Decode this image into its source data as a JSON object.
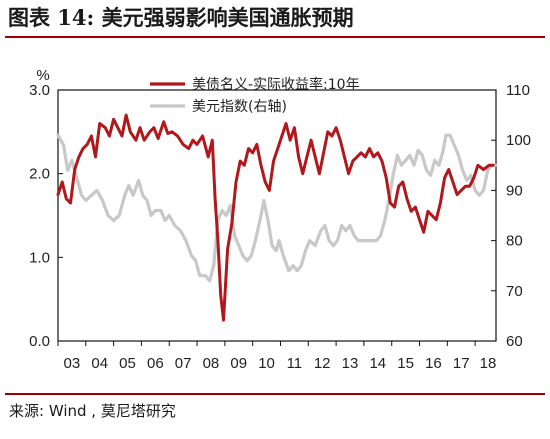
{
  "header": {
    "title": "图表 14:  美元强弱影响美国通胀预期"
  },
  "footer": {
    "source": "来源:  Wind , 莫尼塔研究"
  },
  "colors": {
    "accent": "#9b0000",
    "series_red": "#b0181c",
    "series_gray": "#c8c8c8",
    "axis": "#111111"
  },
  "chart_data": {
    "type": "line",
    "title": "",
    "left_unit": "%",
    "grid": false,
    "legend_position": "top-center",
    "x_tick_labels": [
      "03",
      "04",
      "05",
      "06",
      "07",
      "08",
      "09",
      "10",
      "11",
      "12",
      "13",
      "14",
      "15",
      "16",
      "17",
      "18"
    ],
    "x_range": [
      2003.0,
      2018.75
    ],
    "y_left": {
      "range": [
        0,
        3.0
      ],
      "ticks": [
        "0.0",
        "1.0",
        "2.0",
        "3.0"
      ]
    },
    "y_right": {
      "range": [
        60,
        110
      ],
      "ticks": [
        "60",
        "70",
        "80",
        "90",
        "100",
        "110"
      ]
    },
    "series": [
      {
        "name": "美债名义-实际收益率:10年",
        "axis": "left",
        "color": "#b0181c",
        "points": [
          [
            2003.0,
            1.75
          ],
          [
            2003.15,
            1.9
          ],
          [
            2003.3,
            1.7
          ],
          [
            2003.45,
            1.65
          ],
          [
            2003.6,
            2.05
          ],
          [
            2003.75,
            2.2
          ],
          [
            2003.9,
            2.3
          ],
          [
            2004.05,
            2.35
          ],
          [
            2004.2,
            2.45
          ],
          [
            2004.35,
            2.2
          ],
          [
            2004.5,
            2.6
          ],
          [
            2004.7,
            2.55
          ],
          [
            2004.85,
            2.45
          ],
          [
            2005.0,
            2.65
          ],
          [
            2005.15,
            2.55
          ],
          [
            2005.3,
            2.45
          ],
          [
            2005.45,
            2.7
          ],
          [
            2005.6,
            2.5
          ],
          [
            2005.8,
            2.4
          ],
          [
            2005.95,
            2.55
          ],
          [
            2006.1,
            2.4
          ],
          [
            2006.3,
            2.5
          ],
          [
            2006.45,
            2.55
          ],
          [
            2006.6,
            2.42
          ],
          [
            2006.8,
            2.62
          ],
          [
            2006.95,
            2.48
          ],
          [
            2007.1,
            2.5
          ],
          [
            2007.3,
            2.45
          ],
          [
            2007.5,
            2.35
          ],
          [
            2007.7,
            2.3
          ],
          [
            2007.85,
            2.4
          ],
          [
            2008.0,
            2.35
          ],
          [
            2008.2,
            2.45
          ],
          [
            2008.4,
            2.2
          ],
          [
            2008.55,
            2.4
          ],
          [
            2008.65,
            1.7
          ],
          [
            2008.75,
            1.2
          ],
          [
            2008.85,
            0.55
          ],
          [
            2008.95,
            0.25
          ],
          [
            2009.1,
            1.1
          ],
          [
            2009.25,
            1.4
          ],
          [
            2009.4,
            1.9
          ],
          [
            2009.55,
            2.15
          ],
          [
            2009.7,
            2.1
          ],
          [
            2009.85,
            2.3
          ],
          [
            2010.0,
            2.25
          ],
          [
            2010.15,
            2.35
          ],
          [
            2010.3,
            2.1
          ],
          [
            2010.45,
            1.9
          ],
          [
            2010.6,
            1.8
          ],
          [
            2010.75,
            2.15
          ],
          [
            2010.9,
            2.3
          ],
          [
            2011.05,
            2.45
          ],
          [
            2011.2,
            2.6
          ],
          [
            2011.35,
            2.4
          ],
          [
            2011.5,
            2.55
          ],
          [
            2011.65,
            2.2
          ],
          [
            2011.8,
            2.0
          ],
          [
            2011.95,
            2.2
          ],
          [
            2012.1,
            2.4
          ],
          [
            2012.25,
            2.2
          ],
          [
            2012.4,
            2.0
          ],
          [
            2012.55,
            2.25
          ],
          [
            2012.7,
            2.5
          ],
          [
            2012.85,
            2.45
          ],
          [
            2013.0,
            2.55
          ],
          [
            2013.15,
            2.4
          ],
          [
            2013.3,
            2.2
          ],
          [
            2013.45,
            2.0
          ],
          [
            2013.6,
            2.15
          ],
          [
            2013.75,
            2.2
          ],
          [
            2013.9,
            2.25
          ],
          [
            2014.05,
            2.2
          ],
          [
            2014.2,
            2.3
          ],
          [
            2014.35,
            2.2
          ],
          [
            2014.5,
            2.25
          ],
          [
            2014.65,
            2.15
          ],
          [
            2014.8,
            1.95
          ],
          [
            2014.95,
            1.65
          ],
          [
            2015.1,
            1.6
          ],
          [
            2015.25,
            1.85
          ],
          [
            2015.4,
            1.9
          ],
          [
            2015.55,
            1.7
          ],
          [
            2015.7,
            1.55
          ],
          [
            2015.85,
            1.6
          ],
          [
            2016.0,
            1.45
          ],
          [
            2016.15,
            1.3
          ],
          [
            2016.3,
            1.55
          ],
          [
            2016.45,
            1.5
          ],
          [
            2016.6,
            1.45
          ],
          [
            2016.75,
            1.65
          ],
          [
            2016.9,
            1.95
          ],
          [
            2017.05,
            2.05
          ],
          [
            2017.2,
            1.9
          ],
          [
            2017.35,
            1.75
          ],
          [
            2017.5,
            1.8
          ],
          [
            2017.65,
            1.85
          ],
          [
            2017.8,
            1.85
          ],
          [
            2017.95,
            1.95
          ],
          [
            2018.1,
            2.1
          ],
          [
            2018.3,
            2.05
          ],
          [
            2018.5,
            2.1
          ],
          [
            2018.65,
            2.1
          ]
        ]
      },
      {
        "name": "美元指数(右轴)",
        "axis": "right",
        "color": "#c8c8c8",
        "points": [
          [
            2003.0,
            101
          ],
          [
            2003.2,
            99
          ],
          [
            2003.35,
            94
          ],
          [
            2003.5,
            96
          ],
          [
            2003.7,
            92
          ],
          [
            2003.85,
            89
          ],
          [
            2004.0,
            88
          ],
          [
            2004.2,
            89
          ],
          [
            2004.4,
            90
          ],
          [
            2004.6,
            88
          ],
          [
            2004.8,
            85
          ],
          [
            2005.0,
            84
          ],
          [
            2005.2,
            85
          ],
          [
            2005.4,
            89
          ],
          [
            2005.55,
            91
          ],
          [
            2005.7,
            89
          ],
          [
            2005.9,
            92
          ],
          [
            2006.05,
            89
          ],
          [
            2006.2,
            88
          ],
          [
            2006.35,
            85
          ],
          [
            2006.5,
            86
          ],
          [
            2006.7,
            86
          ],
          [
            2006.85,
            84
          ],
          [
            2007.0,
            85
          ],
          [
            2007.2,
            83
          ],
          [
            2007.4,
            82
          ],
          [
            2007.6,
            80
          ],
          [
            2007.8,
            77
          ],
          [
            2007.95,
            76
          ],
          [
            2008.1,
            73
          ],
          [
            2008.3,
            73
          ],
          [
            2008.45,
            72
          ],
          [
            2008.6,
            75
          ],
          [
            2008.75,
            84
          ],
          [
            2008.9,
            86
          ],
          [
            2009.05,
            85
          ],
          [
            2009.2,
            87
          ],
          [
            2009.35,
            81
          ],
          [
            2009.5,
            79
          ],
          [
            2009.65,
            77
          ],
          [
            2009.8,
            76
          ],
          [
            2009.95,
            77
          ],
          [
            2010.1,
            80
          ],
          [
            2010.3,
            85
          ],
          [
            2010.4,
            88
          ],
          [
            2010.55,
            84
          ],
          [
            2010.7,
            79
          ],
          [
            2010.85,
            78
          ],
          [
            2010.95,
            80
          ],
          [
            2011.1,
            77
          ],
          [
            2011.3,
            74
          ],
          [
            2011.45,
            75
          ],
          [
            2011.6,
            74
          ],
          [
            2011.75,
            75
          ],
          [
            2011.9,
            78
          ],
          [
            2012.05,
            80
          ],
          [
            2012.25,
            79
          ],
          [
            2012.45,
            82
          ],
          [
            2012.6,
            83
          ],
          [
            2012.75,
            80
          ],
          [
            2012.9,
            79
          ],
          [
            2013.05,
            80
          ],
          [
            2013.2,
            83
          ],
          [
            2013.35,
            82
          ],
          [
            2013.5,
            83
          ],
          [
            2013.65,
            81
          ],
          [
            2013.8,
            80
          ],
          [
            2013.95,
            80
          ],
          [
            2014.1,
            80
          ],
          [
            2014.3,
            80
          ],
          [
            2014.45,
            80
          ],
          [
            2014.6,
            81
          ],
          [
            2014.75,
            84
          ],
          [
            2014.9,
            88
          ],
          [
            2015.05,
            93
          ],
          [
            2015.2,
            97
          ],
          [
            2015.35,
            95
          ],
          [
            2015.5,
            96
          ],
          [
            2015.65,
            97
          ],
          [
            2015.8,
            95
          ],
          [
            2015.95,
            98
          ],
          [
            2016.1,
            97
          ],
          [
            2016.25,
            94
          ],
          [
            2016.4,
            93
          ],
          [
            2016.55,
            96
          ],
          [
            2016.7,
            95
          ],
          [
            2016.85,
            98
          ],
          [
            2016.95,
            101
          ],
          [
            2017.1,
            101
          ],
          [
            2017.25,
            99
          ],
          [
            2017.4,
            97
          ],
          [
            2017.55,
            94
          ],
          [
            2017.7,
            92
          ],
          [
            2017.85,
            93
          ],
          [
            2018.0,
            90
          ],
          [
            2018.15,
            89
          ],
          [
            2018.3,
            90
          ],
          [
            2018.45,
            94
          ],
          [
            2018.6,
            95
          ],
          [
            2018.75,
            95
          ]
        ]
      }
    ]
  }
}
